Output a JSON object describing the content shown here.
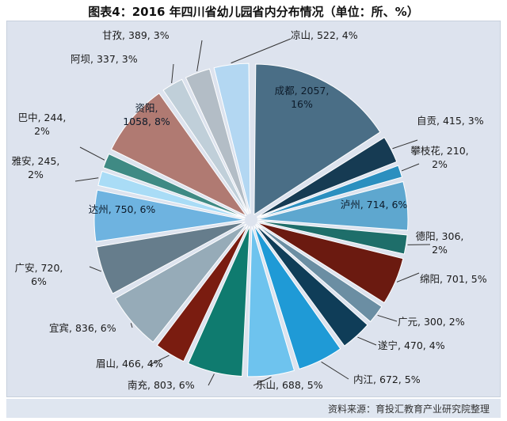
{
  "chart_data": {
    "type": "pie",
    "title": "图表4：2016 年四川省幼儿园省内分布情况（单位：所、%）",
    "source": "资料来源：育投汇教育产业研究院整理",
    "slices": [
      {
        "name": "成都",
        "value": 2057,
        "pct": "16%",
        "color": "#4a6e86",
        "label_lines": [
          "成都, 2057,",
          "16%"
        ],
        "label_pos": "inside"
      },
      {
        "name": "自贡",
        "value": 415,
        "pct": "3%",
        "color": "#163b53",
        "label_lines": [
          "自贡, 415, 3%"
        ],
        "label_pos": "outside"
      },
      {
        "name": "攀枝花",
        "value": 210,
        "pct": "2%",
        "color": "#2b8fbf",
        "label_lines": [
          "攀枝花, 210,",
          "2%"
        ],
        "label_pos": "outside"
      },
      {
        "name": "泸州",
        "value": 714,
        "pct": "6%",
        "color": "#5ea7cf",
        "label_lines": [
          "泸州, 714, 6%"
        ],
        "label_pos": "inside"
      },
      {
        "name": "德阳",
        "value": 306,
        "pct": "2%",
        "color": "#1e6e6a",
        "label_lines": [
          "德阳, 306,",
          "2%"
        ],
        "label_pos": "outside"
      },
      {
        "name": "绵阳",
        "value": 701,
        "pct": "5%",
        "color": "#6b1a10",
        "label_lines": [
          "绵阳, 701, 5%"
        ],
        "label_pos": "outside"
      },
      {
        "name": "广元",
        "value": 300,
        "pct": "2%",
        "color": "#6b8ea3",
        "label_lines": [
          "广元, 300, 2%"
        ],
        "label_pos": "outside"
      },
      {
        "name": "遂宁",
        "value": 470,
        "pct": "4%",
        "color": "#0f3d58",
        "label_lines": [
          "遂宁, 470, 4%"
        ],
        "label_pos": "outside"
      },
      {
        "name": "内江",
        "value": 672,
        "pct": "5%",
        "color": "#1f9ad6",
        "label_lines": [
          "内江, 672, 5%"
        ],
        "label_pos": "outside"
      },
      {
        "name": "乐山",
        "value": 688,
        "pct": "5%",
        "color": "#6ec3ee",
        "label_lines": [
          "乐山, 688, 5%"
        ],
        "label_pos": "outside"
      },
      {
        "name": "南充",
        "value": 803,
        "pct": "6%",
        "color": "#0f7b6f",
        "label_lines": [
          "南充, 803, 6%"
        ],
        "label_pos": "outside"
      },
      {
        "name": "眉山",
        "value": 466,
        "pct": "4%",
        "color": "#7a1c10",
        "label_lines": [
          "眉山, 466, 4%"
        ],
        "label_pos": "outside"
      },
      {
        "name": "宜宾",
        "value": 836,
        "pct": "6%",
        "color": "#96abb8",
        "label_lines": [
          "宜宾, 836, 6%"
        ],
        "label_pos": "outside"
      },
      {
        "name": "广安",
        "value": 720,
        "pct": "6%",
        "color": "#667d8c",
        "label_lines": [
          "广安, 720,",
          "6%"
        ],
        "label_pos": "outside"
      },
      {
        "name": "达州",
        "value": 750,
        "pct": "6%",
        "color": "#6eb3e0",
        "label_lines": [
          "达州, 750, 6%"
        ],
        "label_pos": "inside"
      },
      {
        "name": "雅安",
        "value": 245,
        "pct": "2%",
        "color": "#a9dcf6",
        "label_lines": [
          "雅安, 245,",
          "2%"
        ],
        "label_pos": "outside"
      },
      {
        "name": "巴中",
        "value": 244,
        "pct": "2%",
        "color": "#3f8a84",
        "label_lines": [
          "巴中, 244,",
          "2%"
        ],
        "label_pos": "outside"
      },
      {
        "name": "资阳",
        "value": 1058,
        "pct": "8%",
        "color": "#b07a72",
        "label_lines": [
          "资阳,",
          "1058, 8%"
        ],
        "label_pos": "inside"
      },
      {
        "name": "阿坝",
        "value": 337,
        "pct": "3%",
        "color": "#c0cfd9",
        "label_lines": [
          "阿坝, 337, 3%"
        ],
        "label_pos": "outside"
      },
      {
        "name": "甘孜",
        "value": 389,
        "pct": "3%",
        "color": "#b3bdc6",
        "label_lines": [
          "甘孜, 389, 3%"
        ],
        "label_pos": "outside"
      },
      {
        "name": "凉山",
        "value": 522,
        "pct": "4%",
        "color": "#b3d7f2",
        "label_lines": [
          "凉山, 522, 4%"
        ],
        "label_pos": "outside"
      }
    ]
  }
}
